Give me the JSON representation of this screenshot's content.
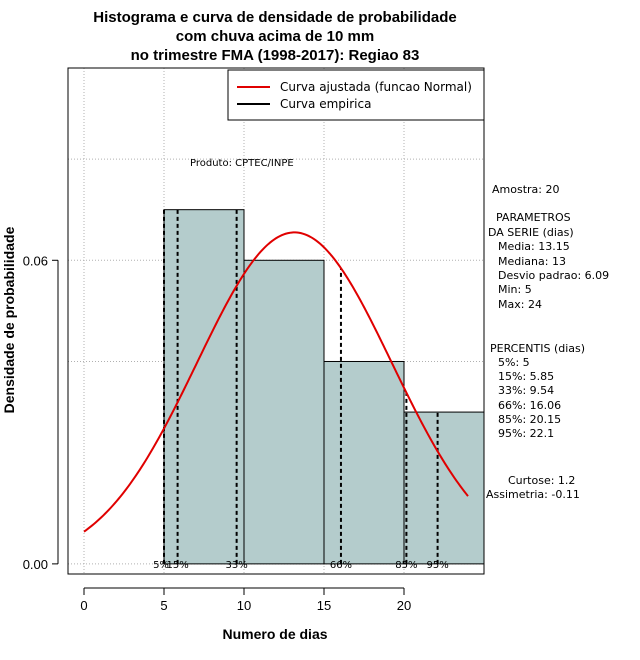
{
  "chart_data": {
    "type": "histogram",
    "title_lines": [
      "Histograma e curva de densidade de probabilidade",
      "com chuva acima de 10 mm",
      "no trimestre FMA (1998-2017): Regiao 83"
    ],
    "xlabel": "Numero de dias",
    "ylabel": "Densidade de probabilidade",
    "xlim": [
      -1,
      25
    ],
    "ylim": [
      -0.002,
      0.098
    ],
    "x_ticks": [
      0,
      5,
      10,
      15,
      20
    ],
    "x_tick_labels": [
      "0",
      "5",
      "10",
      "15",
      "20"
    ],
    "y_ticks": [
      0.0,
      0.06
    ],
    "y_tick_labels": [
      "0.00",
      "0.06"
    ],
    "bins": [
      {
        "from": 5,
        "to": 10,
        "density": 0.07
      },
      {
        "from": 10,
        "to": 15,
        "density": 0.06
      },
      {
        "from": 15,
        "to": 20,
        "density": 0.04
      },
      {
        "from": 20,
        "to": 25,
        "density": 0.03
      }
    ],
    "normal_curve": {
      "mean": 13.15,
      "sd": 6.09,
      "x_from": 0,
      "x_to": 24
    },
    "percentiles": [
      {
        "label": "5%",
        "x": 5
      },
      {
        "label": "15%",
        "x": 5.85
      },
      {
        "label": "33%",
        "x": 9.54
      },
      {
        "label": "66%",
        "x": 16.06
      },
      {
        "label": "85%",
        "x": 20.15
      },
      {
        "label": "95%",
        "x": 22.1
      }
    ],
    "colors": {
      "bars": "#b4cccc",
      "curve": "#e00000",
      "grid": "#b0b0b0"
    },
    "legend": {
      "position": "top-right",
      "entries": [
        {
          "label": "Curva ajustada (funcao Normal)",
          "color": "#e00000"
        },
        {
          "label": "Curva empirica",
          "color": "#000000"
        }
      ]
    },
    "annotation": "Produto: CPTEC/INPE"
  },
  "stats": {
    "sample": "Amostra: 20",
    "params_title_1": "PARAMETROS",
    "params_title_2": "DA SERIE (dias)",
    "media": "Media: 13.15",
    "mediana": "Mediana: 13",
    "desvio": "Desvio padrao: 6.09",
    "min": "Min: 5",
    "max": "Max: 24",
    "percentis_title": "PERCENTIS (dias)",
    "p5": "5%: 5",
    "p15": "15%: 5.85",
    "p33": "33%: 9.54",
    "p66": "66%: 16.06",
    "p85": "85%: 20.15",
    "p95": "95%: 22.1",
    "curtose": "Curtose: 1.2",
    "assimetria": "Assimetria: -0.11"
  }
}
